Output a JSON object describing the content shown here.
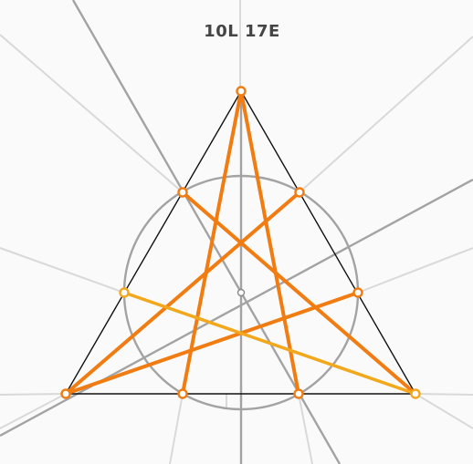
{
  "header": {
    "score_text": "10L 17E"
  },
  "colors": {
    "background": "#fafafa",
    "guide_light": "#d9d9d9",
    "guide_dark": "#a3a3a3",
    "triangle": "#111111",
    "move_line": "#f07c12",
    "candidate_line": "#f2a81d",
    "point_fill": "#ffffff"
  },
  "counts": {
    "lines": 10,
    "extensions": 17
  }
}
